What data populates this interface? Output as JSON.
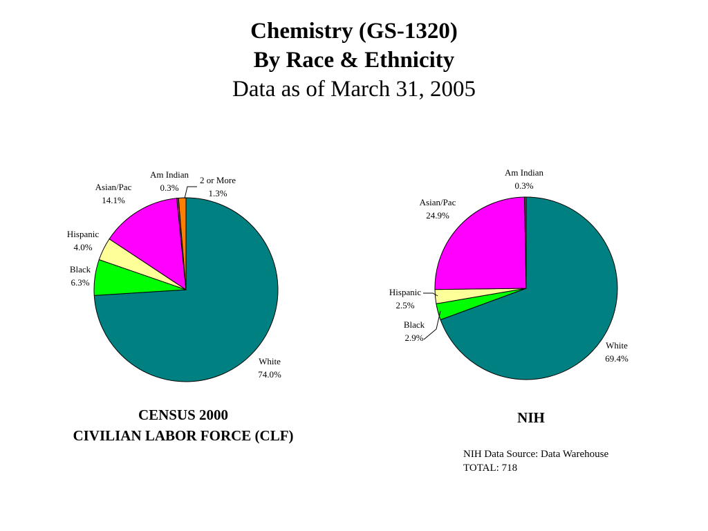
{
  "header": {
    "title": "Chemistry (GS-1320)",
    "subtitle": "By Race & Ethnicity",
    "date_line": "Data as of March 31, 2005"
  },
  "colors": {
    "white": "#008080",
    "black": "#00ff00",
    "hispanic": "#ffff99",
    "asian_pac": "#ff00ff",
    "am_indian": "#993366",
    "two_or_more": "#ff8000"
  },
  "chart_data": [
    {
      "type": "pie",
      "title": "CENSUS 2000",
      "subtitle": "CIVILIAN LABOR FORCE (CLF)",
      "slices": [
        {
          "label": "White",
          "value": 74.0,
          "value_label": "74.0%"
        },
        {
          "label": "Black",
          "value": 6.3,
          "value_label": "6.3%"
        },
        {
          "label": "Hispanic",
          "value": 4.0,
          "value_label": "4.0%"
        },
        {
          "label": "Asian/Pac",
          "value": 14.1,
          "value_label": "14.1%"
        },
        {
          "label": "Am Indian",
          "value": 0.3,
          "value_label": "0.3%"
        },
        {
          "label": "2 or More",
          "value": 1.3,
          "value_label": "1.3%"
        }
      ]
    },
    {
      "type": "pie",
      "title": "NIH",
      "slices": [
        {
          "label": "White",
          "value": 69.4,
          "value_label": "69.4%"
        },
        {
          "label": "Black",
          "value": 2.9,
          "value_label": "2.9%"
        },
        {
          "label": "Hispanic",
          "value": 2.5,
          "value_label": "2.5%"
        },
        {
          "label": "Asian/Pac",
          "value": 24.9,
          "value_label": "24.9%"
        },
        {
          "label": "Am Indian",
          "value": 0.3,
          "value_label": "0.3%"
        }
      ]
    }
  ],
  "nih_note": {
    "source": "NIH Data Source: Data Warehouse",
    "total": "TOTAL:  718"
  }
}
